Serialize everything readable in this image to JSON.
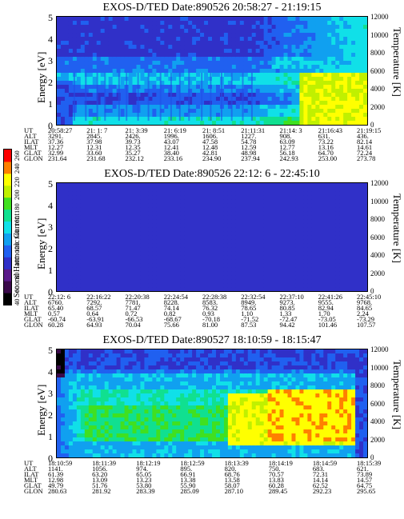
{
  "colorbar": {
    "title": "Second Harmonic Current",
    "ticks": [
      "40",
      "60",
      "80",
      "100",
      "120",
      "140",
      "160",
      "180",
      "200",
      "220",
      "240",
      "260"
    ],
    "colors": [
      "#000000",
      "#3a0a4a",
      "#5a1a8a",
      "#3030c8",
      "#2060f0",
      "#10a0f0",
      "#10e0e8",
      "#10e090",
      "#40e020",
      "#c0f000",
      "#ffff00",
      "#ff8000",
      "#ff0000"
    ]
  },
  "chart_data": [
    {
      "type": "heatmap",
      "title": "EXOS-D/TED   Date:890526  20:58:27 - 21:19:15",
      "ylabel": "Energy [eV]",
      "y2label": "Temperature [K]",
      "ylim": [
        0,
        5
      ],
      "y2lim": [
        0,
        12000
      ],
      "yticks": [
        "5",
        "4",
        "3",
        "2",
        "1",
        "0"
      ],
      "y2ticks": [
        "12000",
        "10000",
        "8000",
        "6000",
        "4000",
        "2000",
        "0"
      ],
      "rows": [
        {
          "label": "UT",
          "values": [
            "20:58:27",
            "21: 1: 7",
            "21: 3:39",
            "21: 6:19",
            "21: 8:51",
            "21:11:31",
            "21:14: 3",
            "21:16:43",
            "21:19:15"
          ]
        },
        {
          "label": "ALT",
          "values": [
            "3291.",
            "2845.",
            "2426.",
            "1996.",
            "1606.",
            "1227.",
            "908.",
            "631.",
            "436."
          ]
        },
        {
          "label": "ILAT",
          "values": [
            "37.36",
            "37.98",
            "39.73",
            "43.07",
            "47.58",
            "54.78",
            "63.09",
            "73.22",
            "82.14"
          ]
        },
        {
          "label": "MLT",
          "values": [
            "12.27",
            "12.31",
            "12.35",
            "12.41",
            "12.48",
            "12.59",
            "12.77",
            "13.16",
            "14.61"
          ]
        },
        {
          "label": "GLAT",
          "values": [
            "32.99",
            "33.60",
            "35.27",
            "38.40",
            "42.81",
            "48.98",
            "56.18",
            "64.70",
            "72.24"
          ]
        },
        {
          "label": "GLON",
          "values": [
            "231.64",
            "231.68",
            "232.12",
            "233.16",
            "234.90",
            "237.94",
            "242.93",
            "253.00",
            "273.78"
          ]
        }
      ]
    },
    {
      "type": "heatmap",
      "title": "EXOS-D/TED   Date:890526  22:12: 6 - 22:45:10",
      "ylabel": "Energy [eV]",
      "y2label": "Temperature [K]",
      "ylim": [
        0,
        5
      ],
      "y2lim": [
        0,
        12000
      ],
      "yticks": [
        "5",
        "4",
        "3",
        "2",
        "1",
        "0"
      ],
      "y2ticks": [
        "12000",
        "10000",
        "8000",
        "6000",
        "4000",
        "2000",
        "0"
      ],
      "rows": [
        {
          "label": "UT",
          "values": [
            "22:12: 6",
            "22:16:22",
            "22:20:38",
            "22:24:54",
            "22:28:38",
            "22:32:54",
            "22:37:10",
            "22:41:26",
            "22:45:10"
          ]
        },
        {
          "label": "ALT",
          "values": [
            "6760.",
            "7292.",
            "7781.",
            "8228.",
            "8583.",
            "8949.",
            "9273.",
            "9555.",
            "9768."
          ]
        },
        {
          "label": "ILAT",
          "values": [
            "65.40",
            "68.57",
            "71.47",
            "74.14",
            "76.32",
            "78.65",
            "80.85",
            "82.94",
            "84.65"
          ]
        },
        {
          "label": "MLT",
          "values": [
            "0.57",
            "0.64",
            "0.72",
            "0.82",
            "0.93",
            "1.10",
            "1.33",
            "1.70",
            "2.24"
          ]
        },
        {
          "label": "GLAT",
          "values": [
            "-60.74",
            "-63.91",
            "-66.53",
            "-68.67",
            "-70.18",
            "-71.52",
            "-72.47",
            "-73.05",
            "-73.29"
          ]
        },
        {
          "label": "GLON",
          "values": [
            "60.28",
            "64.93",
            "70.04",
            "75.66",
            "81.00",
            "87.53",
            "94.42",
            "101.46",
            "107.57"
          ]
        }
      ]
    },
    {
      "type": "heatmap",
      "title": "EXOS-D/TED   Date:890527  18:10:59 - 18:15:47",
      "ylabel": "Energy [eV]",
      "y2label": "Temperature [K]",
      "ylim": [
        0,
        5
      ],
      "y2lim": [
        0,
        12000
      ],
      "yticks": [
        "5",
        "4",
        "3",
        "2",
        "1",
        "0"
      ],
      "y2ticks": [
        "12000",
        "10000",
        "8000",
        "6000",
        "4000",
        "2000",
        "0"
      ],
      "rows": [
        {
          "label": "UT",
          "values": [
            "18:10:59",
            "18:11:39",
            "18:12:19",
            "18:12:59",
            "18:13:39",
            "18:14:19",
            "18:14:59",
            "18:15:39"
          ]
        },
        {
          "label": "ALT",
          "values": [
            "1141.",
            "1056.",
            "974.",
            "895.",
            "820.",
            "750.",
            "683.",
            "621."
          ]
        },
        {
          "label": "ILAT",
          "values": [
            "61.39",
            "63.20",
            "65.05",
            "66.91",
            "68.76",
            "70.57",
            "72.31",
            "73.89"
          ]
        },
        {
          "label": "MLT",
          "values": [
            "12.98",
            "13.09",
            "13.23",
            "13.38",
            "13.58",
            "13.83",
            "14.14",
            "14.57"
          ]
        },
        {
          "label": "GLAT",
          "values": [
            "49.79",
            "51.76",
            "53.80",
            "55.90",
            "58.07",
            "60.28",
            "62.52",
            "64.75"
          ]
        },
        {
          "label": "GLON",
          "values": [
            "280.63",
            "281.92",
            "283.39",
            "285.09",
            "287.10",
            "289.45",
            "292.23",
            "295.65"
          ]
        }
      ]
    }
  ]
}
